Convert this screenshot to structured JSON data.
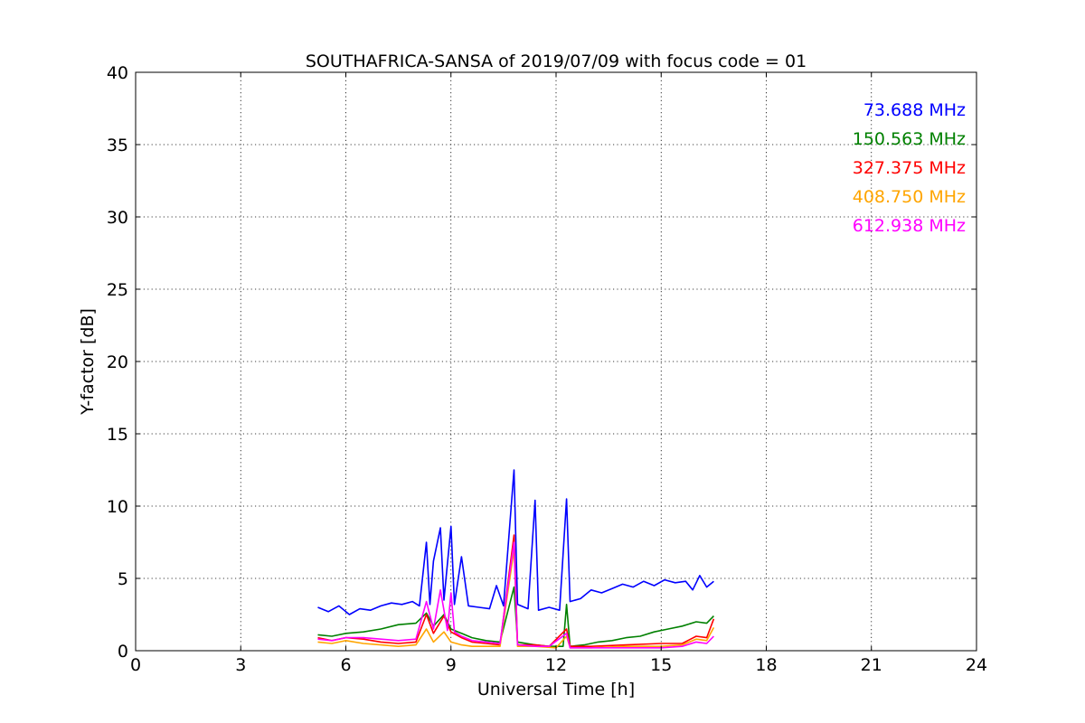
{
  "chart_data": {
    "type": "line",
    "title": "SOUTHAFRICA-SANSA of 2019/07/09 with focus code = 01",
    "xlabel": "Universal Time [h]",
    "ylabel": "Y-factor [dB]",
    "xlim": [
      0,
      24
    ],
    "ylim": [
      0,
      40
    ],
    "xticks": [
      0,
      3,
      6,
      9,
      12,
      15,
      18,
      21,
      24
    ],
    "yticks": [
      0,
      5,
      10,
      15,
      20,
      25,
      30,
      35,
      40
    ],
    "grid": true,
    "legend_position": "top-right",
    "series": [
      {
        "name": "73.688 MHz",
        "color": "#0000ff",
        "points": [
          [
            5.2,
            3.0
          ],
          [
            5.5,
            2.7
          ],
          [
            5.8,
            3.1
          ],
          [
            6.1,
            2.5
          ],
          [
            6.4,
            2.9
          ],
          [
            6.7,
            2.8
          ],
          [
            7.0,
            3.1
          ],
          [
            7.3,
            3.3
          ],
          [
            7.6,
            3.2
          ],
          [
            7.9,
            3.4
          ],
          [
            8.1,
            3.1
          ],
          [
            8.3,
            7.5
          ],
          [
            8.4,
            3.2
          ],
          [
            8.5,
            6.2
          ],
          [
            8.7,
            8.5
          ],
          [
            8.8,
            3.5
          ],
          [
            9.0,
            8.6
          ],
          [
            9.1,
            3.2
          ],
          [
            9.3,
            6.5
          ],
          [
            9.5,
            3.1
          ],
          [
            9.8,
            3.0
          ],
          [
            10.1,
            2.9
          ],
          [
            10.3,
            4.5
          ],
          [
            10.5,
            3.1
          ],
          [
            10.8,
            12.5
          ],
          [
            10.9,
            3.2
          ],
          [
            11.2,
            2.9
          ],
          [
            11.4,
            10.4
          ],
          [
            11.5,
            2.8
          ],
          [
            11.8,
            3.0
          ],
          [
            12.1,
            2.8
          ],
          [
            12.3,
            10.5
          ],
          [
            12.4,
            3.4
          ],
          [
            12.7,
            3.6
          ],
          [
            13.0,
            4.2
          ],
          [
            13.3,
            4.0
          ],
          [
            13.6,
            4.3
          ],
          [
            13.9,
            4.6
          ],
          [
            14.2,
            4.4
          ],
          [
            14.5,
            4.8
          ],
          [
            14.8,
            4.5
          ],
          [
            15.1,
            4.9
          ],
          [
            15.4,
            4.7
          ],
          [
            15.7,
            4.8
          ],
          [
            15.9,
            4.2
          ],
          [
            16.1,
            5.2
          ],
          [
            16.3,
            4.4
          ],
          [
            16.5,
            4.8
          ]
        ]
      },
      {
        "name": "150.563 MHz",
        "color": "#008000",
        "points": [
          [
            5.2,
            1.1
          ],
          [
            5.6,
            1.0
          ],
          [
            6.0,
            1.2
          ],
          [
            6.5,
            1.3
          ],
          [
            7.0,
            1.5
          ],
          [
            7.5,
            1.8
          ],
          [
            8.0,
            1.9
          ],
          [
            8.3,
            2.6
          ],
          [
            8.5,
            1.7
          ],
          [
            8.8,
            2.5
          ],
          [
            9.0,
            1.5
          ],
          [
            9.3,
            1.2
          ],
          [
            9.6,
            0.9
          ],
          [
            10.0,
            0.7
          ],
          [
            10.4,
            0.6
          ],
          [
            10.8,
            4.4
          ],
          [
            10.9,
            0.6
          ],
          [
            11.4,
            0.4
          ],
          [
            11.8,
            0.3
          ],
          [
            12.2,
            0.3
          ],
          [
            12.3,
            3.2
          ],
          [
            12.4,
            0.3
          ],
          [
            12.8,
            0.4
          ],
          [
            13.2,
            0.6
          ],
          [
            13.6,
            0.7
          ],
          [
            14.0,
            0.9
          ],
          [
            14.4,
            1.0
          ],
          [
            14.8,
            1.3
          ],
          [
            15.2,
            1.5
          ],
          [
            15.6,
            1.7
          ],
          [
            16.0,
            2.0
          ],
          [
            16.3,
            1.9
          ],
          [
            16.5,
            2.4
          ]
        ]
      },
      {
        "name": "327.375 MHz",
        "color": "#ff0000",
        "points": [
          [
            5.2,
            0.9
          ],
          [
            5.6,
            0.7
          ],
          [
            6.0,
            0.9
          ],
          [
            6.5,
            0.8
          ],
          [
            7.0,
            0.6
          ],
          [
            7.5,
            0.5
          ],
          [
            8.0,
            0.6
          ],
          [
            8.3,
            2.5
          ],
          [
            8.5,
            1.2
          ],
          [
            8.8,
            2.4
          ],
          [
            9.0,
            1.3
          ],
          [
            9.3,
            0.9
          ],
          [
            9.6,
            0.6
          ],
          [
            10.0,
            0.5
          ],
          [
            10.4,
            0.4
          ],
          [
            10.8,
            8.0
          ],
          [
            10.9,
            0.4
          ],
          [
            11.4,
            0.4
          ],
          [
            11.8,
            0.3
          ],
          [
            12.3,
            1.5
          ],
          [
            12.4,
            0.3
          ],
          [
            13.0,
            0.3
          ],
          [
            14.0,
            0.4
          ],
          [
            15.0,
            0.5
          ],
          [
            15.6,
            0.5
          ],
          [
            16.0,
            1.0
          ],
          [
            16.3,
            0.9
          ],
          [
            16.5,
            2.2
          ]
        ]
      },
      {
        "name": "408.750 MHz",
        "color": "#ffa500",
        "points": [
          [
            5.2,
            0.6
          ],
          [
            5.6,
            0.5
          ],
          [
            6.0,
            0.7
          ],
          [
            6.5,
            0.5
          ],
          [
            7.0,
            0.4
          ],
          [
            7.5,
            0.3
          ],
          [
            8.0,
            0.4
          ],
          [
            8.3,
            1.5
          ],
          [
            8.5,
            0.6
          ],
          [
            8.8,
            1.3
          ],
          [
            9.0,
            0.6
          ],
          [
            9.3,
            0.4
          ],
          [
            9.6,
            0.3
          ],
          [
            10.0,
            0.3
          ],
          [
            10.4,
            0.3
          ],
          [
            10.8,
            7.0
          ],
          [
            10.9,
            0.3
          ],
          [
            11.4,
            0.3
          ],
          [
            12.0,
            0.2
          ],
          [
            12.3,
            1.0
          ],
          [
            12.4,
            0.2
          ],
          [
            13.0,
            0.2
          ],
          [
            14.0,
            0.3
          ],
          [
            15.0,
            0.3
          ],
          [
            15.6,
            0.4
          ],
          [
            16.0,
            0.8
          ],
          [
            16.3,
            0.7
          ],
          [
            16.5,
            1.6
          ]
        ]
      },
      {
        "name": "612.938 MHz",
        "color": "#ff00ff",
        "points": [
          [
            5.2,
            0.8
          ],
          [
            5.6,
            0.7
          ],
          [
            6.0,
            0.9
          ],
          [
            6.5,
            0.9
          ],
          [
            7.0,
            0.8
          ],
          [
            7.5,
            0.7
          ],
          [
            8.0,
            0.8
          ],
          [
            8.3,
            3.4
          ],
          [
            8.5,
            1.5
          ],
          [
            8.7,
            4.2
          ],
          [
            8.9,
            1.4
          ],
          [
            9.0,
            4.0
          ],
          [
            9.1,
            1.3
          ],
          [
            9.3,
            1.0
          ],
          [
            9.6,
            0.7
          ],
          [
            10.0,
            0.6
          ],
          [
            10.4,
            0.5
          ],
          [
            10.8,
            7.5
          ],
          [
            10.9,
            0.4
          ],
          [
            11.4,
            0.3
          ],
          [
            11.8,
            0.3
          ],
          [
            12.3,
            1.2
          ],
          [
            12.4,
            0.2
          ],
          [
            13.0,
            0.2
          ],
          [
            14.0,
            0.2
          ],
          [
            15.0,
            0.2
          ],
          [
            15.6,
            0.3
          ],
          [
            16.0,
            0.6
          ],
          [
            16.3,
            0.5
          ],
          [
            16.5,
            1.0
          ]
        ]
      }
    ]
  }
}
